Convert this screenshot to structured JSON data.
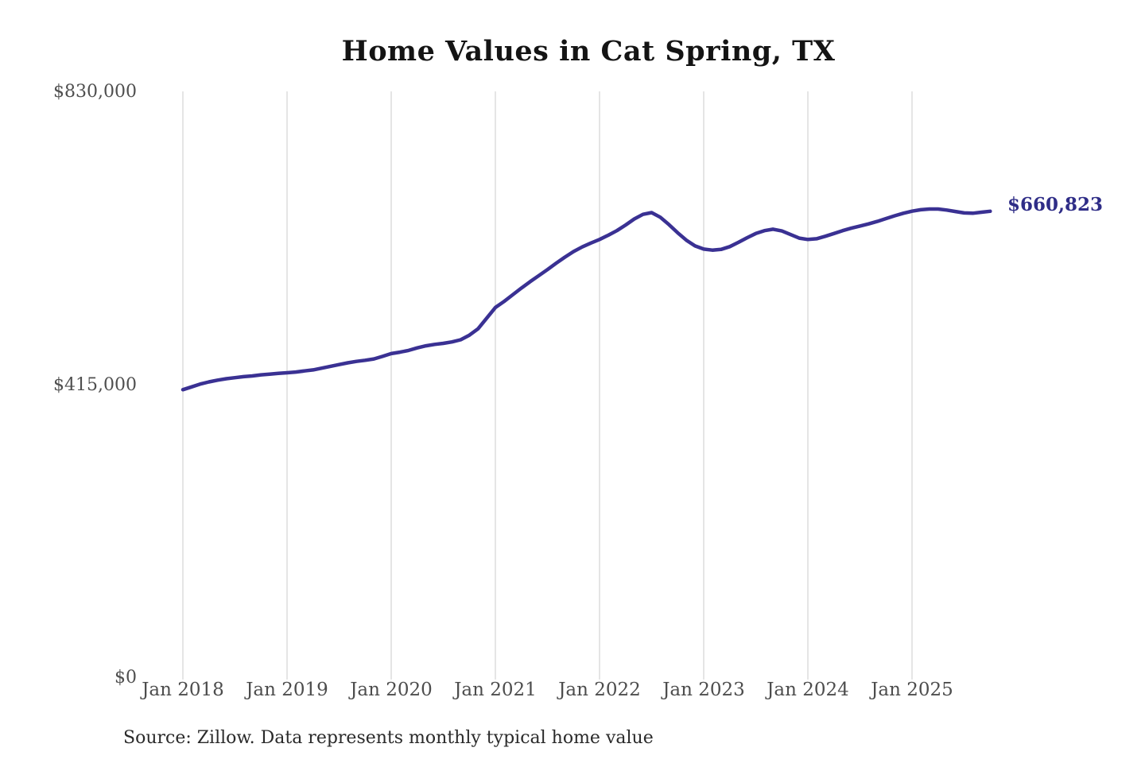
{
  "header": {
    "title": "Home Values in Cat Spring, TX"
  },
  "footer": {
    "source_note": "Source: Zillow. Data represents monthly typical home value"
  },
  "chart_data": {
    "type": "line",
    "title": "Home Values in Cat Spring, TX",
    "xlabel": "",
    "ylabel": "",
    "ylim": [
      0,
      830000
    ],
    "y_tick_labels": [
      "$830,000",
      "$415,000",
      "$0"
    ],
    "y_tick_values": [
      830000,
      415000,
      0
    ],
    "x_tick_labels": [
      "Jan 2018",
      "Jan 2019",
      "Jan 2020",
      "Jan 2021",
      "Jan 2022",
      "Jan 2023",
      "Jan 2024",
      "Jan 2025"
    ],
    "grid": "vertical-only",
    "legend": "none",
    "end_label": "$660,823",
    "latest_value": 660823,
    "line_color": "#3a3193",
    "end_label_color": "#2f2d87",
    "gridline_color": "#cbcbcb",
    "series": [
      {
        "name": "Monthly typical home value",
        "start_month": "2018-01",
        "end_month": "2025-10",
        "frequency": "monthly",
        "values": [
          409000,
          413000,
          417000,
          420000,
          422500,
          424500,
          426000,
          427500,
          428500,
          430000,
          431000,
          432000,
          433000,
          434000,
          435500,
          437000,
          439500,
          442000,
          444500,
          447000,
          449000,
          450500,
          452500,
          456000,
          460000,
          462000,
          464500,
          468000,
          471000,
          473000,
          474500,
          476500,
          479500,
          486000,
          495000,
          510000,
          525000,
          533500,
          543000,
          552500,
          561500,
          570000,
          578500,
          587500,
          596000,
          604000,
          610500,
          616000,
          621000,
          627000,
          633500,
          641500,
          650000,
          656500,
          659000,
          652500,
          642000,
          630500,
          620000,
          612000,
          607500,
          606000,
          607000,
          611000,
          617000,
          623500,
          629500,
          633500,
          635500,
          633000,
          628000,
          623000,
          621000,
          622000,
          625500,
          629500,
          633500,
          637000,
          640000,
          643000,
          646500,
          650500,
          654500,
          658000,
          661000,
          663000,
          664000,
          664000,
          662500,
          660500,
          658500,
          658000,
          659500,
          660823
        ]
      }
    ]
  }
}
